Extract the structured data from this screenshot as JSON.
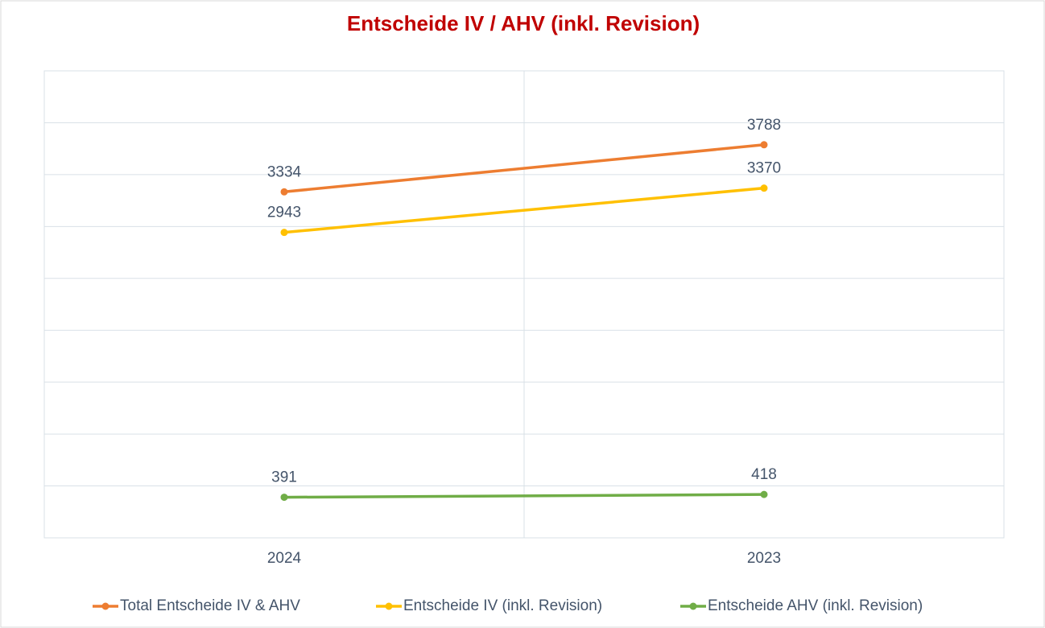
{
  "chart_data": {
    "type": "line",
    "title": "Entscheide IV / AHV (inkl. Revision)",
    "categories": [
      "2024",
      "2023"
    ],
    "series": [
      {
        "name": "Total Entscheide IV & AHV",
        "color": "#ed7d31",
        "values": [
          3334,
          3788
        ]
      },
      {
        "name": "Entscheide IV (inkl. Revision)",
        "color": "#ffc000",
        "values": [
          2943,
          3370
        ]
      },
      {
        "name": "Entscheide AHV (inkl. Revision)",
        "color": "#70ad47",
        "values": [
          391,
          418
        ]
      }
    ],
    "ylim": [
      0,
      4500
    ],
    "yticks": [
      0,
      500,
      1000,
      1500,
      2000,
      2500,
      3000,
      3500,
      4000,
      4500
    ],
    "grid": true,
    "legend": "bottom"
  }
}
